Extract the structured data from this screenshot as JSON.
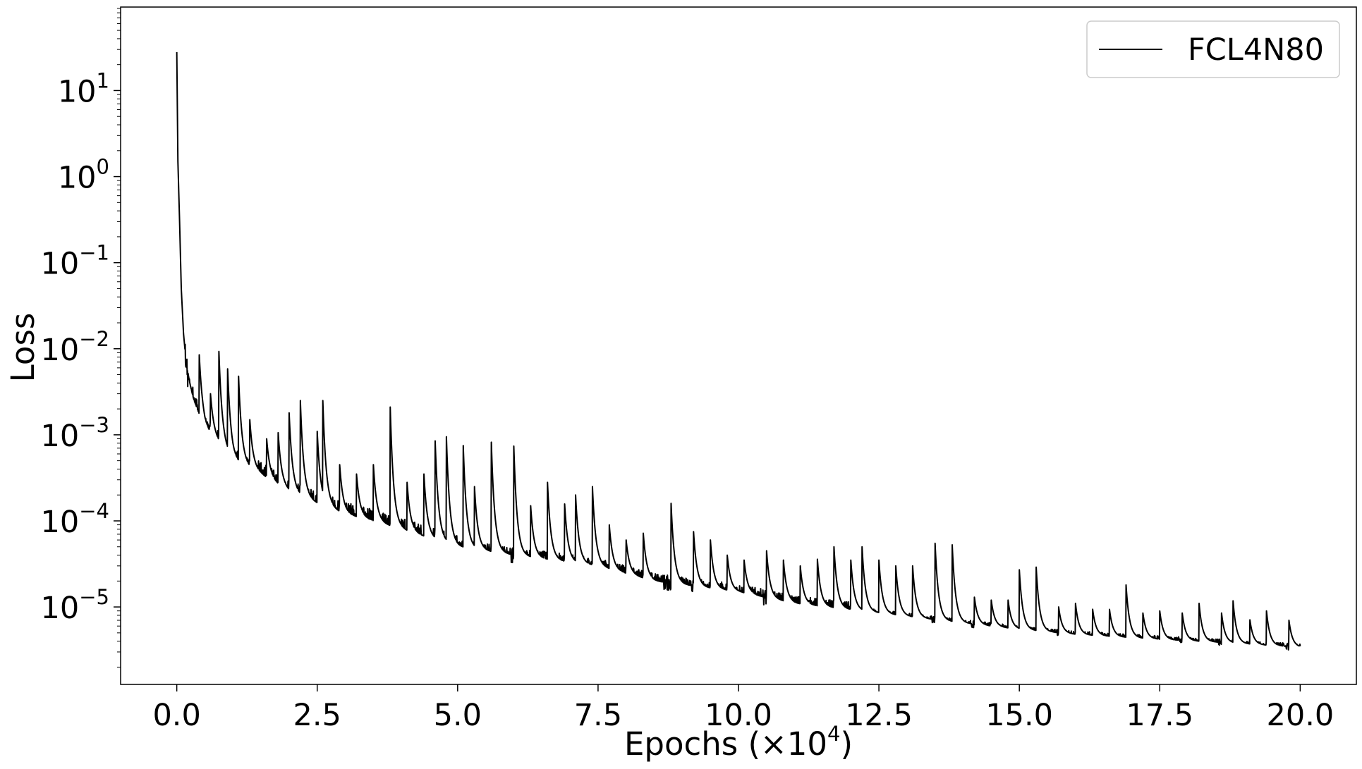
{
  "chart_data": {
    "type": "line",
    "title": "",
    "xlabel": {
      "main": "Epochs (×10",
      "sup": "4",
      "close": ")"
    },
    "ylabel": "Loss",
    "xlim": [
      -1.0,
      21.0
    ],
    "ylim_log10": [
      -5.9,
      1.97
    ],
    "yscale": "log",
    "grid": false,
    "legend_position": "top-right",
    "x_ticks": [
      0,
      2.5,
      5,
      7.5,
      10,
      12.5,
      15,
      17.5,
      20
    ],
    "x_tick_labels": [
      "0.0",
      "2.5",
      "5.0",
      "7.5",
      "10.0",
      "12.5",
      "15.0",
      "17.5",
      "20.0"
    ],
    "y_ticks": [
      {
        "exp": 1,
        "base": "10",
        "sup": "1"
      },
      {
        "exp": 0,
        "base": "10",
        "sup": "0"
      },
      {
        "exp": -1,
        "base": "10",
        "sup": "−1"
      },
      {
        "exp": -2,
        "base": "10",
        "sup": "−2"
      },
      {
        "exp": -3,
        "base": "10",
        "sup": "−3"
      },
      {
        "exp": -4,
        "base": "10",
        "sup": "−4"
      },
      {
        "exp": -5,
        "base": "10",
        "sup": "−5"
      }
    ],
    "series": [
      {
        "name": "FCL4N80",
        "color": "#000000",
        "baseline": [
          [
            0.0,
            28
          ],
          [
            0.02,
            1.5
          ],
          [
            0.05,
            0.3
          ],
          [
            0.08,
            0.05
          ],
          [
            0.12,
            0.015
          ],
          [
            0.2,
            0.004
          ],
          [
            0.3,
            0.0025
          ],
          [
            0.5,
            0.0012
          ],
          [
            0.75,
            0.0008
          ],
          [
            1.0,
            0.0005
          ],
          [
            1.5,
            0.00035
          ],
          [
            2.0,
            0.00022
          ],
          [
            2.5,
            0.00016
          ],
          [
            3.0,
            0.00012
          ],
          [
            3.5,
            0.0001
          ],
          [
            4.0,
            8e-05
          ],
          [
            5.0,
            5e-05
          ],
          [
            6.0,
            4e-05
          ],
          [
            7.5,
            3e-05
          ],
          [
            8.5,
            2e-05
          ],
          [
            10.0,
            1.5e-05
          ],
          [
            11.0,
            1.1e-05
          ],
          [
            12.5,
            8.5e-06
          ],
          [
            14.0,
            6.5e-06
          ],
          [
            15.0,
            5.5e-06
          ],
          [
            16.0,
            4.8e-06
          ],
          [
            17.5,
            4.2e-06
          ],
          [
            18.5,
            3.9e-06
          ],
          [
            20.0,
            3.4e-06
          ]
        ],
        "spikes": [
          [
            0.2,
            0.0052
          ],
          [
            0.4,
            0.0085
          ],
          [
            0.6,
            0.003
          ],
          [
            0.75,
            0.0093
          ],
          [
            0.9,
            0.0072
          ],
          [
            1.1,
            0.0048
          ],
          [
            1.3,
            0.0015
          ],
          [
            1.6,
            0.0009
          ],
          [
            1.8,
            0.0012
          ],
          [
            2.0,
            0.0018
          ],
          [
            2.2,
            0.0025
          ],
          [
            2.5,
            0.0011
          ],
          [
            2.6,
            0.0025
          ],
          [
            2.9,
            0.00045
          ],
          [
            3.2,
            0.00035
          ],
          [
            3.5,
            0.00045
          ],
          [
            3.8,
            0.0021
          ],
          [
            4.1,
            0.00028
          ],
          [
            4.4,
            0.00035
          ],
          [
            4.6,
            0.00085
          ],
          [
            4.8,
            0.00095
          ],
          [
            5.1,
            0.00075
          ],
          [
            5.3,
            0.00025
          ],
          [
            5.6,
            0.00082
          ],
          [
            6.0,
            0.00074
          ],
          [
            6.3,
            0.00015
          ],
          [
            6.6,
            0.00028
          ],
          [
            6.9,
            0.00018
          ],
          [
            7.1,
            0.0002
          ],
          [
            7.4,
            0.00025
          ],
          [
            7.7,
            9e-05
          ],
          [
            8.0,
            6e-05
          ],
          [
            8.3,
            8e-05
          ],
          [
            8.8,
            0.00016
          ],
          [
            9.2,
            7.5e-05
          ],
          [
            9.5,
            6e-05
          ],
          [
            9.8,
            4e-05
          ],
          [
            10.1,
            3.5e-05
          ],
          [
            10.5,
            4.5e-05
          ],
          [
            10.8,
            3.5e-05
          ],
          [
            11.1,
            3e-05
          ],
          [
            11.4,
            4e-05
          ],
          [
            11.7,
            5e-05
          ],
          [
            12.0,
            3.5e-05
          ],
          [
            12.2,
            5e-05
          ],
          [
            12.5,
            3.5e-05
          ],
          [
            12.8,
            3e-05
          ],
          [
            13.1,
            3e-05
          ],
          [
            13.5,
            5.5e-05
          ],
          [
            13.8,
            6.3e-05
          ],
          [
            14.2,
            1.3e-05
          ],
          [
            14.5,
            1.2e-05
          ],
          [
            14.8,
            1.2e-05
          ],
          [
            15.0,
            2.7e-05
          ],
          [
            15.3,
            2.9e-05
          ],
          [
            15.7,
            1e-05
          ],
          [
            16.0,
            1.1e-05
          ],
          [
            16.3,
            1e-05
          ],
          [
            16.6,
            1e-05
          ],
          [
            16.9,
            1.8e-05
          ],
          [
            17.2,
            8.5e-06
          ],
          [
            17.5,
            9e-06
          ],
          [
            17.9,
            8.5e-06
          ],
          [
            18.2,
            1.1e-05
          ],
          [
            18.6,
            8.5e-06
          ],
          [
            18.8,
            1.3e-05
          ],
          [
            19.1,
            7.5e-06
          ],
          [
            19.4,
            9e-06
          ],
          [
            19.8,
            7e-06
          ]
        ]
      }
    ]
  }
}
